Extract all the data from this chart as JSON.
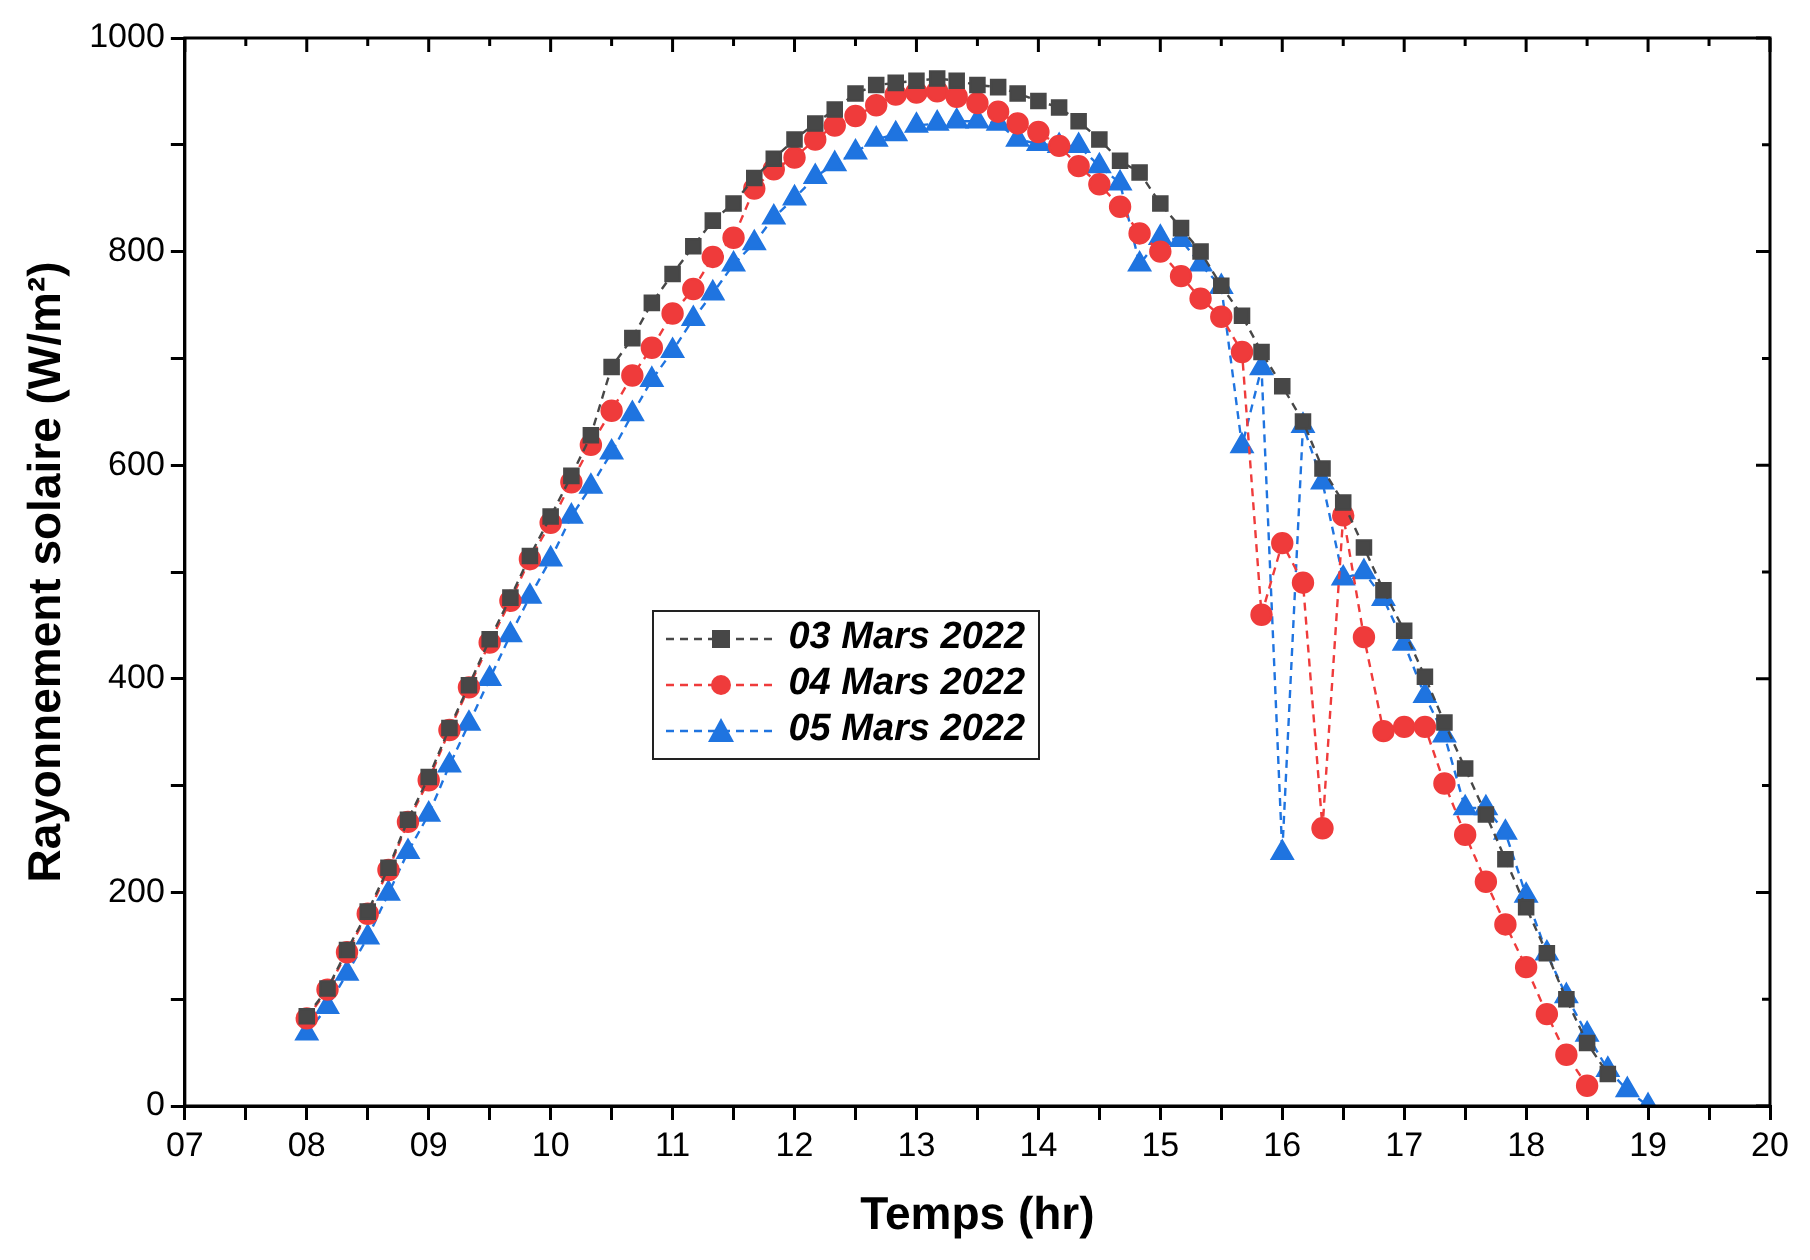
{
  "chart_data": {
    "type": "line",
    "xlabel": "Temps (hr)",
    "ylabel": "Rayonnement solaire (W/m²)",
    "x": [
      8,
      8.17,
      8.33,
      8.5,
      8.67,
      8.83,
      9,
      9.17,
      9.33,
      9.5,
      9.67,
      9.83,
      10,
      10.17,
      10.33,
      10.5,
      10.67,
      10.83,
      11,
      11.17,
      11.33,
      11.5,
      11.67,
      11.83,
      12,
      12.17,
      12.33,
      12.5,
      12.67,
      12.83,
      13,
      13.17,
      13.33,
      13.5,
      13.67,
      13.83,
      14,
      14.17,
      14.33,
      14.5,
      14.67,
      14.83,
      15,
      15.17,
      15.33,
      15.5,
      15.67,
      15.83,
      16,
      16.17,
      16.33,
      16.5,
      16.67,
      16.83,
      17,
      17.17,
      17.33,
      17.5,
      17.67,
      17.83,
      18,
      18.17,
      18.33,
      18.5,
      18.67,
      18.83,
      19
    ],
    "series": [
      {
        "name": "03 Mars 2022",
        "color": "#474747",
        "marker": "square",
        "values": [
          84,
          110,
          146,
          182,
          223,
          268,
          308,
          354,
          394,
          437,
          476,
          515,
          552,
          590,
          628,
          692,
          719,
          752,
          779,
          805,
          829,
          845,
          869,
          887,
          905,
          920,
          933,
          948,
          956,
          958,
          960,
          962,
          960,
          956,
          954,
          948,
          941,
          935,
          922,
          905,
          885,
          874,
          845,
          822,
          800,
          768,
          740,
          706,
          674,
          641,
          597,
          565,
          523,
          483,
          445,
          402,
          359,
          316,
          273,
          231,
          186,
          143,
          100,
          59,
          30,
          null,
          null
        ]
      },
      {
        "name": "04 Mars 2022",
        "color": "#ef3b3b",
        "marker": "circle",
        "values": [
          82,
          109,
          144,
          180,
          221,
          266,
          305,
          352,
          392,
          434,
          473,
          512,
          546,
          584,
          619,
          651,
          684,
          710,
          742,
          765,
          795,
          813,
          859,
          877,
          888,
          905,
          918,
          927,
          937,
          947,
          949,
          950,
          945,
          939,
          931,
          920,
          912,
          899,
          880,
          863,
          842,
          817,
          800,
          777,
          756,
          739,
          706,
          460,
          527,
          490,
          260,
          553,
          439,
          351,
          355,
          355,
          302,
          254,
          210,
          170,
          130,
          86,
          48,
          19,
          null,
          null,
          null
        ]
      },
      {
        "name": "05 Mars 2022",
        "color": "#1f74e0",
        "marker": "triangle",
        "values": [
          68,
          93,
          124,
          158,
          199,
          238,
          273,
          319,
          358,
          400,
          441,
          477,
          512,
          552,
          580,
          612,
          648,
          680,
          707,
          737,
          761,
          788,
          808,
          832,
          850,
          870,
          882,
          893,
          905,
          910,
          918,
          920,
          922,
          922,
          920,
          905,
          901,
          899,
          899,
          880,
          864,
          788,
          813,
          811,
          788,
          767,
          618,
          691,
          237,
          637,
          584,
          494,
          500,
          475,
          433,
          384,
          347,
          279,
          279,
          256,
          197,
          143,
          103,
          67,
          34,
          15,
          0
        ]
      }
    ],
    "line_style": "dashed",
    "xlim": [
      7,
      20
    ],
    "xticks": [
      {
        "value": 7,
        "label": "07"
      },
      {
        "value": 7.5,
        "label": null
      },
      {
        "value": 8,
        "label": "08"
      },
      {
        "value": 8.5,
        "label": null
      },
      {
        "value": 9,
        "label": "09"
      },
      {
        "value": 9.5,
        "label": null
      },
      10,
      {
        "value": 10.5,
        "label": null
      },
      11,
      {
        "value": 11.5,
        "label": null
      },
      12,
      {
        "value": 12.5,
        "label": null
      },
      13,
      {
        "value": 13.5,
        "label": null
      },
      14,
      {
        "value": 14.5,
        "label": null
      },
      15,
      {
        "value": 15.5,
        "label": null
      },
      16,
      {
        "value": 16.5,
        "label": null
      },
      17,
      {
        "value": 17.5,
        "label": null
      },
      18,
      {
        "value": 18.5,
        "label": null
      },
      19,
      {
        "value": 19.5,
        "label": null
      },
      20
    ],
    "ylim": [
      0,
      1000
    ],
    "yticks": [
      0,
      {
        "value": 100,
        "label": null
      },
      200,
      {
        "value": 300,
        "label": null
      },
      400,
      {
        "value": 500,
        "label": null
      },
      600,
      {
        "value": 700,
        "label": null
      },
      800,
      {
        "value": 900,
        "label": null
      },
      1000
    ],
    "grid": false,
    "legend": "center"
  }
}
